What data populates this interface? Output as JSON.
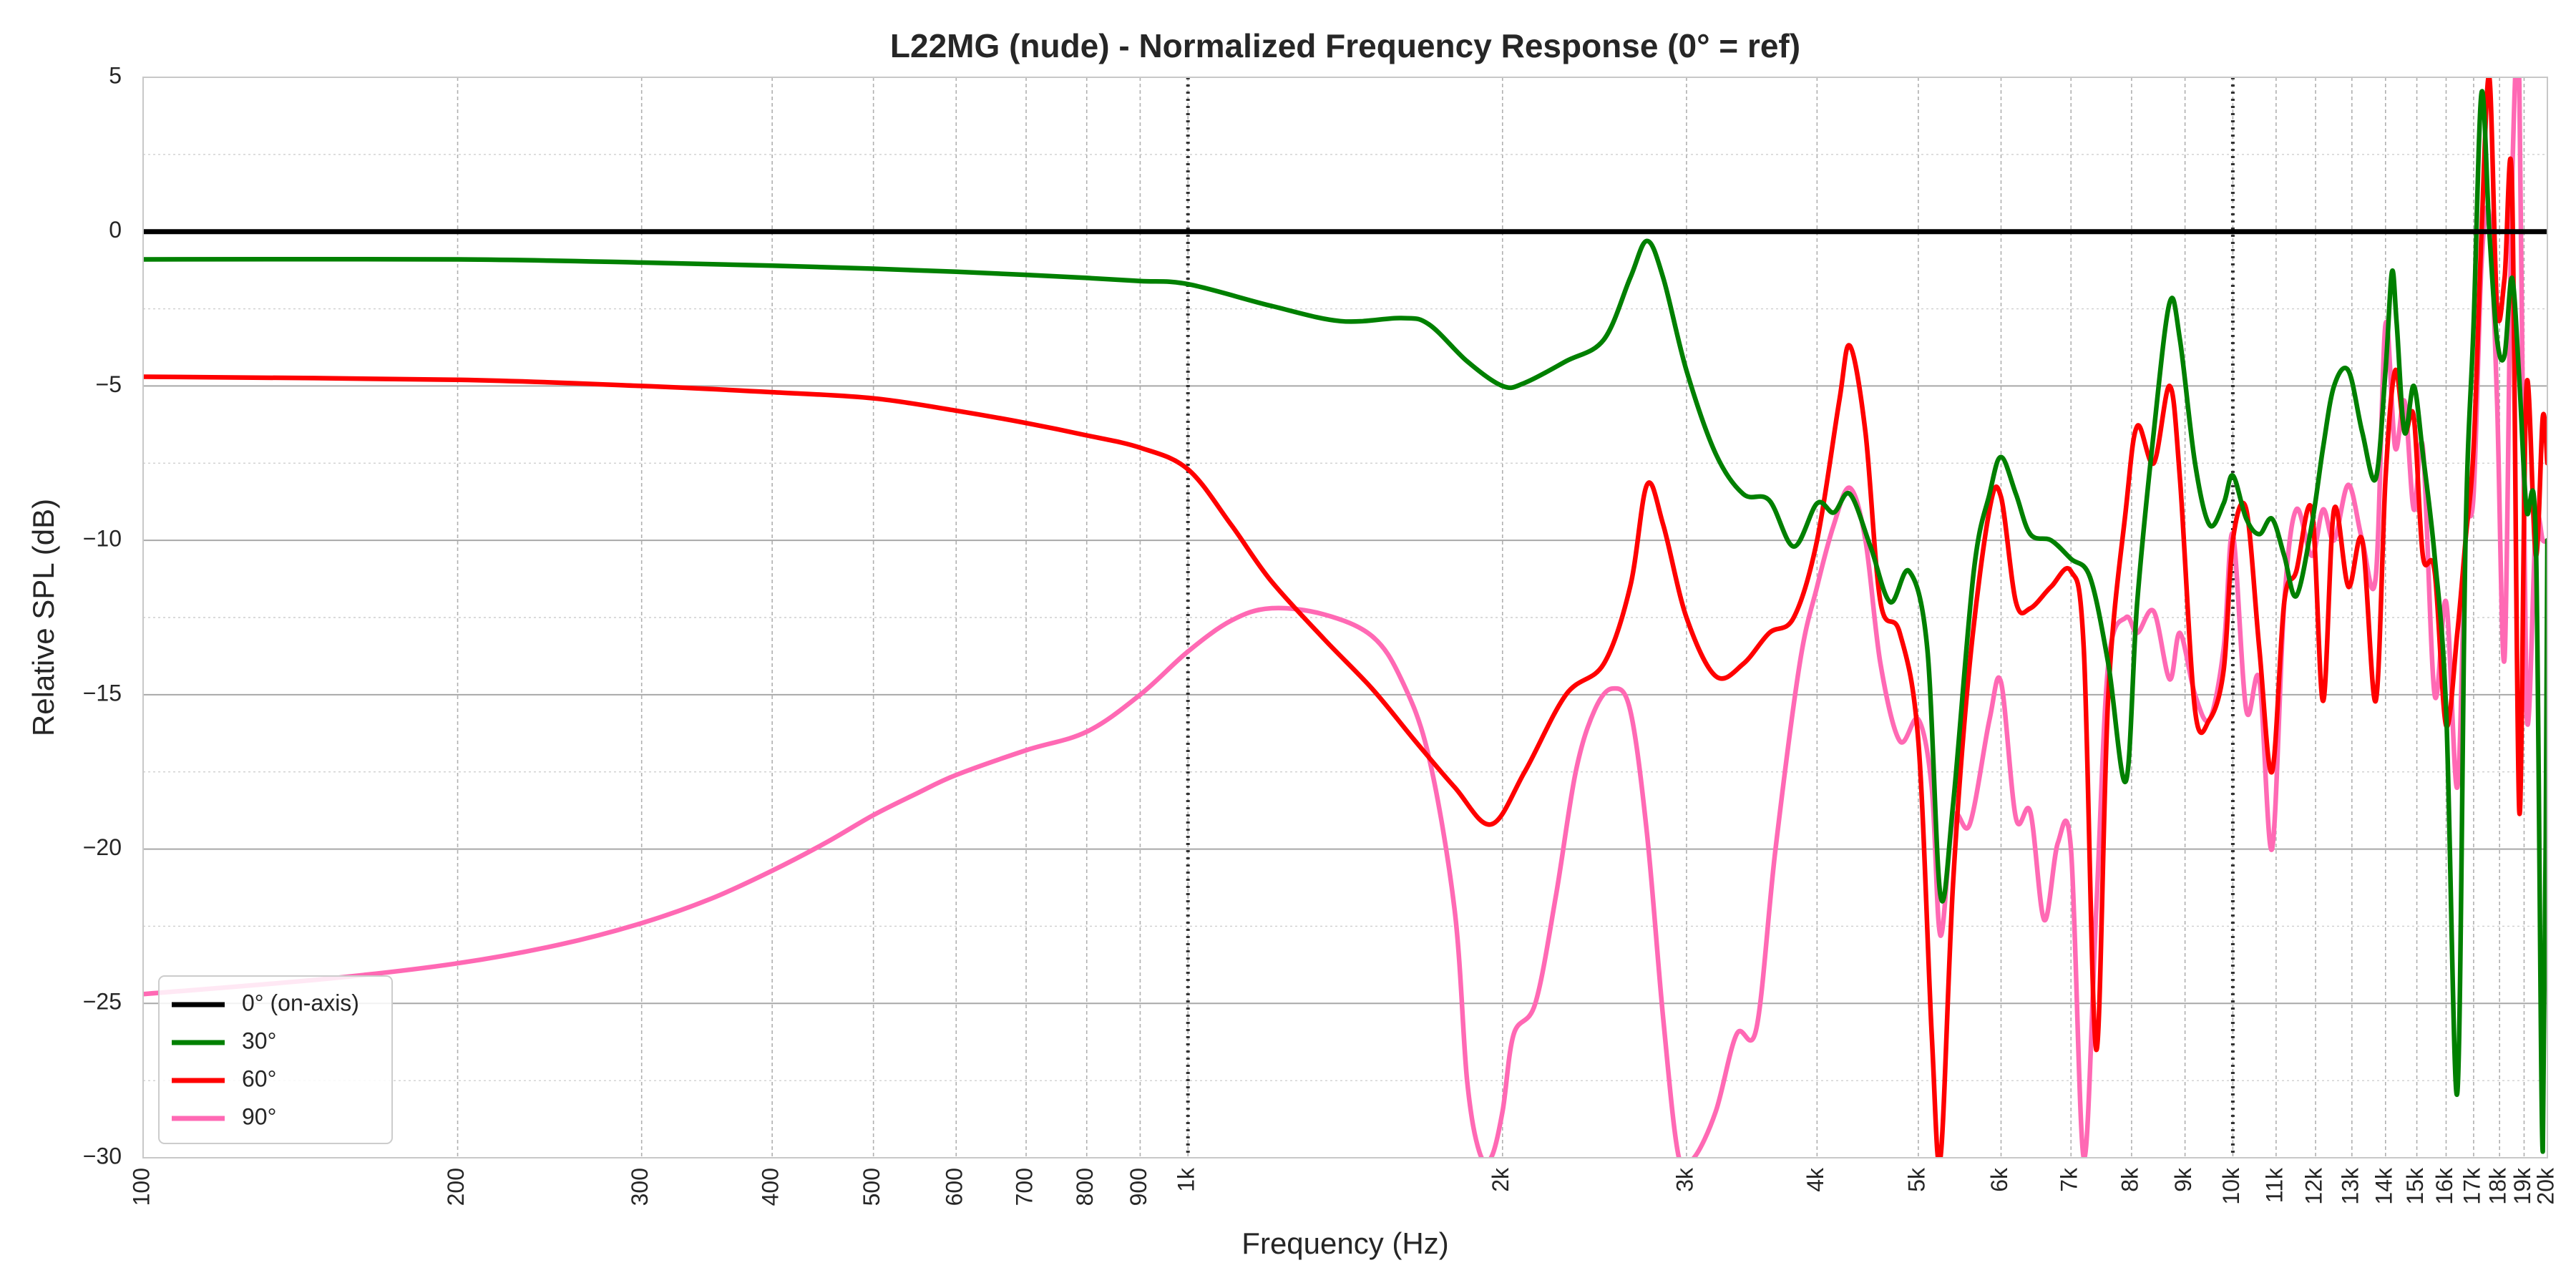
{
  "chart_data": {
    "type": "line",
    "title": "L22MG (nude) - Normalized Frequency Response (0° = ref)",
    "xlabel": "Frequency (Hz)",
    "ylabel": "Relative SPL (dB)",
    "x_scale": "log",
    "xlim": [
      100,
      20000
    ],
    "ylim": [
      -30,
      5
    ],
    "grid": true,
    "legend_position": "lower-left",
    "x_ticks": [
      100,
      200,
      300,
      400,
      500,
      600,
      700,
      800,
      900,
      1000,
      2000,
      3000,
      4000,
      5000,
      6000,
      7000,
      8000,
      9000,
      10000,
      11000,
      12000,
      13000,
      14000,
      15000,
      16000,
      17000,
      18000,
      19000,
      20000
    ],
    "x_tick_labels": [
      "100",
      "200",
      "300",
      "400",
      "500",
      "600",
      "700",
      "800",
      "900",
      "1k",
      "2k",
      "3k",
      "4k",
      "5k",
      "6k",
      "7k",
      "8k",
      "9k",
      "10k",
      "11k",
      "12k",
      "13k",
      "14k",
      "15k",
      "16k",
      "17k",
      "18k",
      "19k",
      "20k"
    ],
    "y_ticks": [
      5,
      0,
      -5,
      -10,
      -15,
      -20,
      -25,
      -30
    ],
    "y_tick_labels": [
      "5",
      "0",
      "−5",
      "−10",
      "−15",
      "−20",
      "−25",
      "−30"
    ],
    "reference_lines_x": [
      1000,
      10000
    ],
    "series": [
      {
        "name": "0° (on-axis)",
        "color": "#000000",
        "x": [
          100,
          20000
        ],
        "y": [
          0,
          0
        ]
      },
      {
        "name": "30°",
        "color": "#008000",
        "x": [
          100,
          200,
          300,
          400,
          500,
          600,
          700,
          800,
          900,
          1000,
          1200,
          1400,
          1600,
          1700,
          1850,
          2000,
          2100,
          2300,
          2500,
          2650,
          2750,
          2850,
          3000,
          3200,
          3400,
          3600,
          3800,
          4000,
          4150,
          4300,
          4500,
          4700,
          4900,
          5100,
          5250,
          5400,
          5650,
          5850,
          6000,
          6200,
          6400,
          6700,
          7000,
          7300,
          7600,
          7900,
          8100,
          8400,
          8700,
          8900,
          9200,
          9500,
          9800,
          10000,
          10300,
          10600,
          10900,
          11200,
          11500,
          11900,
          12200,
          12500,
          12900,
          13300,
          13700,
          14000,
          14200,
          14350,
          14600,
          14900,
          15200,
          15600,
          16000,
          16400,
          16700,
          17000,
          17300,
          17600,
          17900,
          18200,
          18500,
          18800,
          19100,
          19500,
          19800,
          20000
        ],
        "y": [
          -0.9,
          -0.9,
          -1.0,
          -1.1,
          -1.2,
          -1.3,
          -1.4,
          -1.5,
          -1.6,
          -1.7,
          -2.4,
          -2.9,
          -2.8,
          -3.0,
          -4.2,
          -5.0,
          -4.9,
          -4.2,
          -3.5,
          -1.5,
          -0.3,
          -1.5,
          -4.5,
          -7.2,
          -8.5,
          -8.7,
          -10.2,
          -8.8,
          -9.1,
          -8.5,
          -10.2,
          -12.0,
          -11.0,
          -13.5,
          -21.5,
          -18.5,
          -11.0,
          -8.5,
          -7.3,
          -8.5,
          -9.8,
          -10.0,
          -10.6,
          -11.2,
          -14.0,
          -17.8,
          -12.0,
          -6.5,
          -2.3,
          -3.5,
          -7.5,
          -9.5,
          -8.8,
          -7.9,
          -9.3,
          -9.8,
          -9.3,
          -10.5,
          -11.8,
          -9.5,
          -7.0,
          -5.0,
          -4.5,
          -6.5,
          -8.0,
          -4.5,
          -1.3,
          -3.0,
          -6.5,
          -5.0,
          -7.2,
          -10.5,
          -15.5,
          -27.9,
          -10.0,
          -3.0,
          4.5,
          0.0,
          -3.5,
          -4.0,
          -1.5,
          -4.8,
          -9.0,
          -10.0,
          -29.8,
          -10.0
        ]
      },
      {
        "name": "60°",
        "color": "#ff0000",
        "x": [
          100,
          200,
          300,
          400,
          500,
          600,
          700,
          800,
          900,
          1000,
          1100,
          1200,
          1350,
          1500,
          1650,
          1800,
          1950,
          2100,
          2300,
          2500,
          2650,
          2750,
          2850,
          3000,
          3200,
          3400,
          3600,
          3800,
          4000,
          4200,
          4300,
          4450,
          4600,
          4800,
          5000,
          5150,
          5250,
          5400,
          5600,
          5850,
          6000,
          6200,
          6400,
          6700,
          7000,
          7200,
          7400,
          7600,
          7900,
          8100,
          8400,
          8700,
          8900,
          9200,
          9500,
          9800,
          10000,
          10300,
          10600,
          10900,
          11200,
          11500,
          11900,
          12200,
          12500,
          12900,
          13300,
          13700,
          14000,
          14300,
          14600,
          14900,
          15200,
          15600,
          16000,
          16400,
          16700,
          17000,
          17300,
          17600,
          17900,
          18200,
          18500,
          18800,
          19100,
          19500,
          19800,
          20000
        ],
        "y": [
          -4.7,
          -4.8,
          -5.0,
          -5.2,
          -5.4,
          -5.8,
          -6.2,
          -6.6,
          -7.0,
          -7.7,
          -9.5,
          -11.3,
          -13.2,
          -14.8,
          -16.5,
          -18.0,
          -19.2,
          -17.5,
          -15.0,
          -14.0,
          -11.5,
          -8.2,
          -9.5,
          -12.5,
          -14.4,
          -14.0,
          -13.0,
          -12.5,
          -10.0,
          -5.5,
          -3.7,
          -6.5,
          -12.0,
          -13.0,
          -16.5,
          -26.0,
          -30.0,
          -21.0,
          -14.0,
          -9.0,
          -8.6,
          -12.0,
          -12.2,
          -11.5,
          -11.0,
          -13.5,
          -26.5,
          -15.0,
          -9.0,
          -6.3,
          -7.5,
          -5.0,
          -8.0,
          -15.5,
          -15.8,
          -14.2,
          -10.0,
          -9.0,
          -13.5,
          -17.5,
          -12.0,
          -11.0,
          -9.0,
          -15.2,
          -9.0,
          -11.5,
          -10.0,
          -15.2,
          -8.0,
          -4.5,
          -6.5,
          -6.0,
          -10.5,
          -11.0,
          -16.0,
          -13.0,
          -10.0,
          -7.0,
          0.0,
          5.0,
          -2.5,
          -1.5,
          1.5,
          -18.8,
          -5.0,
          -10.5,
          -6.0,
          -7.5
        ]
      },
      {
        "name": "90°",
        "color": "#ff69b4",
        "x": [
          100,
          150,
          200,
          250,
          300,
          350,
          400,
          450,
          500,
          550,
          600,
          700,
          800,
          900,
          1000,
          1100,
          1200,
          1350,
          1500,
          1600,
          1700,
          1800,
          1850,
          1900,
          1950,
          2000,
          2050,
          2150,
          2250,
          2350,
          2450,
          2550,
          2650,
          2750,
          2850,
          2950,
          3050,
          3200,
          3350,
          3500,
          3650,
          3850,
          4000,
          4150,
          4300,
          4450,
          4600,
          4800,
          5000,
          5150,
          5250,
          5400,
          5600,
          5850,
          6000,
          6200,
          6400,
          6600,
          6800,
          7000,
          7200,
          7400,
          7600,
          7900,
          8100,
          8400,
          8700,
          8900,
          9200,
          9500,
          9800,
          10000,
          10300,
          10600,
          10900,
          11200,
          11500,
          11900,
          12200,
          12500,
          12900,
          13300,
          13700,
          14000,
          14300,
          14600,
          14900,
          15200,
          15600,
          16000,
          16400,
          16700,
          17000,
          17300,
          17600,
          17900,
          18200,
          18500,
          18800,
          19100,
          19500,
          19800,
          20000
        ],
        "y": [
          -24.7,
          -24.2,
          -23.7,
          -23.1,
          -22.4,
          -21.6,
          -20.7,
          -19.8,
          -18.9,
          -18.2,
          -17.6,
          -16.8,
          -16.2,
          -15.0,
          -13.6,
          -12.6,
          -12.2,
          -12.4,
          -13.1,
          -14.5,
          -17.0,
          -22.0,
          -27.5,
          -29.8,
          -30.0,
          -28.5,
          -26.0,
          -25.0,
          -21.5,
          -17.5,
          -15.5,
          -14.8,
          -15.5,
          -19.5,
          -25.5,
          -30.0,
          -30.0,
          -28.5,
          -26.0,
          -25.8,
          -20.0,
          -14.0,
          -11.5,
          -9.5,
          -8.3,
          -10.0,
          -14.0,
          -16.5,
          -15.8,
          -18.0,
          -22.8,
          -19.0,
          -19.2,
          -15.8,
          -14.6,
          -19.0,
          -18.8,
          -22.3,
          -19.8,
          -20.0,
          -30.0,
          -22.0,
          -14.0,
          -12.5,
          -13.0,
          -12.3,
          -14.5,
          -13.0,
          -15.0,
          -15.8,
          -13.5,
          -9.8,
          -15.5,
          -14.5,
          -20.0,
          -12.0,
          -9.0,
          -10.5,
          -9.0,
          -10.0,
          -8.2,
          -10.0,
          -11.2,
          -3.0,
          -7.0,
          -5.5,
          -9.0,
          -7.0,
          -15.0,
          -12.0,
          -18.0,
          -10.0,
          -8.5,
          -1.0,
          0.5,
          -5.5,
          -13.8,
          1.5,
          4.8,
          -15.5,
          -9.5,
          -10.0,
          -10.0
        ]
      }
    ]
  }
}
